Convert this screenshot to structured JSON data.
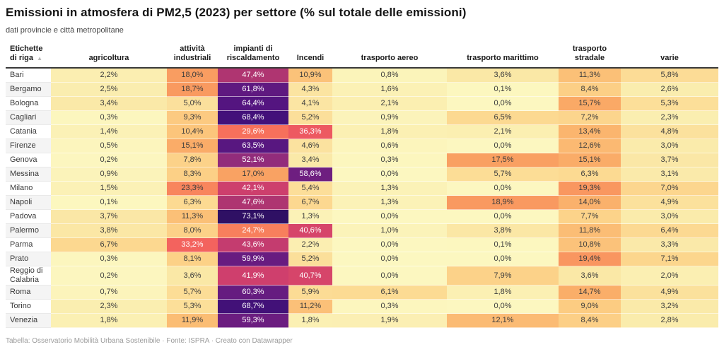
{
  "title": "Emissioni in atmosfera di PM2,5 (2023) per settore (% sul totale delle emissioni)",
  "subtitle": "dati provincie e città metropolitane",
  "footer": "Tabella: Osservatorio Mobilità Urbana Sostenibile · Fonte: ISPRA · Creato con Datawrapper",
  "chart_data": {
    "type": "heatmap",
    "row_label_header": "Etichette di riga",
    "sort_icon": "▲",
    "value_suffix": "%",
    "decimal_separator": ",",
    "columns": [
      "agricoltura",
      "attività industriali",
      "impianti di riscaldamento",
      "Incendi",
      "trasporto aereo",
      "trasporto marittimo",
      "trasporto stradale",
      "varie"
    ],
    "rows": [
      {
        "label": "Bari",
        "values": [
          2.2,
          18.0,
          47.4,
          10.9,
          0.8,
          3.6,
          11.3,
          5.8
        ]
      },
      {
        "label": "Bergamo",
        "values": [
          2.5,
          18.7,
          61.8,
          4.3,
          1.6,
          0.1,
          8.4,
          2.6
        ]
      },
      {
        "label": "Bologna",
        "values": [
          3.4,
          5.0,
          64.4,
          4.1,
          2.1,
          0.0,
          15.7,
          5.3
        ]
      },
      {
        "label": "Cagliari",
        "values": [
          0.3,
          9.3,
          68.4,
          5.2,
          0.9,
          6.5,
          7.2,
          2.3
        ]
      },
      {
        "label": "Catania",
        "values": [
          1.4,
          10.4,
          29.6,
          36.3,
          1.8,
          2.1,
          13.4,
          4.8
        ]
      },
      {
        "label": "Firenze",
        "values": [
          0.5,
          15.1,
          63.5,
          4.6,
          0.6,
          0.0,
          12.6,
          3.0
        ]
      },
      {
        "label": "Genova",
        "values": [
          0.2,
          7.8,
          52.1,
          3.4,
          0.3,
          17.5,
          15.1,
          3.7
        ]
      },
      {
        "label": "Messina",
        "values": [
          0.9,
          8.3,
          17.0,
          58.6,
          0.0,
          5.7,
          6.3,
          3.1
        ]
      },
      {
        "label": "Milano",
        "values": [
          1.5,
          23.3,
          42.1,
          5.4,
          1.3,
          0.0,
          19.3,
          7.0
        ]
      },
      {
        "label": "Napoli",
        "values": [
          0.1,
          6.3,
          47.6,
          6.7,
          1.3,
          18.9,
          14.0,
          4.9
        ]
      },
      {
        "label": "Padova",
        "values": [
          3.7,
          11.3,
          73.1,
          1.3,
          0.0,
          0.0,
          7.7,
          3.0
        ]
      },
      {
        "label": "Palermo",
        "values": [
          3.8,
          8.0,
          24.7,
          40.6,
          1.0,
          3.8,
          11.8,
          6.4
        ]
      },
      {
        "label": "Parma",
        "values": [
          6.7,
          33.2,
          43.6,
          2.2,
          0.0,
          0.1,
          10.8,
          3.3
        ]
      },
      {
        "label": "Prato",
        "values": [
          0.3,
          8.1,
          59.9,
          5.2,
          0.0,
          0.0,
          19.4,
          7.1
        ]
      },
      {
        "label": "Reggio di Calabria",
        "values": [
          0.2,
          3.6,
          41.9,
          40.7,
          0.0,
          7.9,
          3.6,
          2.0
        ]
      },
      {
        "label": "Roma",
        "values": [
          0.7,
          5.7,
          60.3,
          5.9,
          6.1,
          1.8,
          14.7,
          4.9
        ]
      },
      {
        "label": "Torino",
        "values": [
          2.3,
          5.3,
          68.7,
          11.2,
          0.3,
          0.0,
          9.0,
          3.2
        ]
      },
      {
        "label": "Venezia",
        "values": [
          1.8,
          11.9,
          59.3,
          1.8,
          1.9,
          12.1,
          8.4,
          2.8
        ]
      }
    ],
    "layout_hints": {
      "legend": "none",
      "zebra_striping_label_column": true,
      "white_text_threshold": 24
    },
    "colors": {
      "dark_text": "#3d3d3d",
      "light_text": "#ffffff",
      "header_rule": "#393939",
      "scale_stops": [
        [
          0,
          "#FCF7C0"
        ],
        [
          3,
          "#FAEBAB"
        ],
        [
          6,
          "#FCDB94"
        ],
        [
          9,
          "#FCCC82"
        ],
        [
          12,
          "#FBBC74"
        ],
        [
          15,
          "#FAAC68"
        ],
        [
          18,
          "#F99D61"
        ],
        [
          21,
          "#F98E5E"
        ],
        [
          24,
          "#F8825D"
        ],
        [
          27,
          "#F8775C"
        ],
        [
          30,
          "#F76F5C"
        ],
        [
          33,
          "#F3645E"
        ],
        [
          36,
          "#EE5A60"
        ],
        [
          39,
          "#E04C66"
        ],
        [
          42,
          "#CE3F6D"
        ],
        [
          45,
          "#BC3970"
        ],
        [
          48,
          "#AC3471"
        ],
        [
          52,
          "#932C7B"
        ],
        [
          56,
          "#7C227F"
        ],
        [
          60,
          "#671C80"
        ],
        [
          64,
          "#561680"
        ],
        [
          68,
          "#45117B"
        ],
        [
          71,
          "#370F70"
        ],
        [
          75,
          "#27105A"
        ]
      ]
    }
  }
}
